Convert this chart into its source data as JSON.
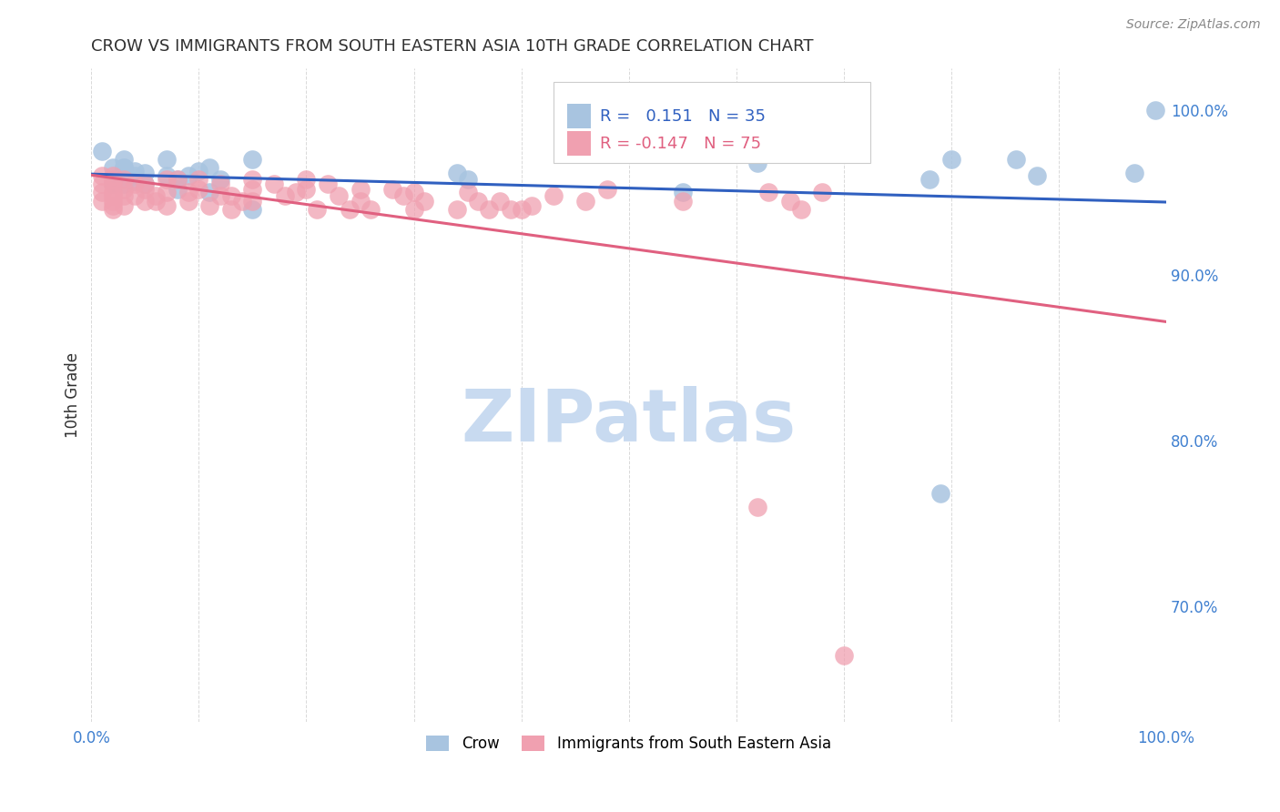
{
  "title": "CROW VS IMMIGRANTS FROM SOUTH EASTERN ASIA 10TH GRADE CORRELATION CHART",
  "source": "Source: ZipAtlas.com",
  "ylabel": "10th Grade",
  "legend_blue_label": "Crow",
  "legend_pink_label": "Immigrants from South Eastern Asia",
  "blue_R": 0.151,
  "blue_N": 35,
  "pink_R": -0.147,
  "pink_N": 75,
  "blue_color": "#a8c4e0",
  "pink_color": "#f0a0b0",
  "blue_line_color": "#3060c0",
  "pink_line_color": "#e06080",
  "background_color": "#ffffff",
  "grid_color": "#d0d0d0",
  "title_color": "#303030",
  "right_axis_color": "#4080d0",
  "xmin": 0.0,
  "xmax": 1.0,
  "ymin": 0.63,
  "ymax": 1.025,
  "blue_scatter_x": [
    0.01,
    0.02,
    0.02,
    0.03,
    0.03,
    0.03,
    0.03,
    0.03,
    0.04,
    0.04,
    0.04,
    0.05,
    0.05,
    0.07,
    0.07,
    0.08,
    0.08,
    0.09,
    0.1,
    0.11,
    0.11,
    0.12,
    0.15,
    0.15,
    0.34,
    0.35,
    0.55,
    0.62,
    0.78,
    0.79,
    0.8,
    0.86,
    0.88,
    0.97,
    0.99
  ],
  "blue_scatter_y": [
    0.975,
    0.965,
    0.955,
    0.955,
    0.965,
    0.96,
    0.97,
    0.965,
    0.957,
    0.96,
    0.963,
    0.955,
    0.962,
    0.97,
    0.96,
    0.952,
    0.958,
    0.96,
    0.963,
    0.95,
    0.965,
    0.958,
    0.94,
    0.97,
    0.962,
    0.958,
    0.95,
    0.968,
    0.958,
    0.768,
    0.97,
    0.97,
    0.96,
    0.962,
    1.0
  ],
  "pink_scatter_x": [
    0.01,
    0.01,
    0.01,
    0.01,
    0.02,
    0.02,
    0.02,
    0.02,
    0.02,
    0.02,
    0.02,
    0.02,
    0.03,
    0.03,
    0.03,
    0.03,
    0.04,
    0.04,
    0.05,
    0.05,
    0.05,
    0.06,
    0.06,
    0.07,
    0.07,
    0.07,
    0.08,
    0.09,
    0.09,
    0.1,
    0.1,
    0.11,
    0.12,
    0.12,
    0.13,
    0.13,
    0.14,
    0.15,
    0.15,
    0.15,
    0.17,
    0.18,
    0.19,
    0.2,
    0.2,
    0.21,
    0.22,
    0.23,
    0.24,
    0.25,
    0.25,
    0.26,
    0.28,
    0.29,
    0.3,
    0.3,
    0.31,
    0.34,
    0.35,
    0.36,
    0.37,
    0.38,
    0.39,
    0.4,
    0.41,
    0.43,
    0.46,
    0.48,
    0.55,
    0.62,
    0.63,
    0.65,
    0.66,
    0.68,
    0.7
  ],
  "pink_scatter_y": [
    0.96,
    0.955,
    0.95,
    0.945,
    0.96,
    0.958,
    0.95,
    0.948,
    0.945,
    0.942,
    0.94,
    0.955,
    0.958,
    0.952,
    0.948,
    0.942,
    0.955,
    0.948,
    0.955,
    0.952,
    0.945,
    0.945,
    0.948,
    0.958,
    0.95,
    0.942,
    0.958,
    0.95,
    0.945,
    0.958,
    0.952,
    0.942,
    0.955,
    0.948,
    0.948,
    0.94,
    0.945,
    0.958,
    0.952,
    0.945,
    0.955,
    0.948,
    0.95,
    0.958,
    0.952,
    0.94,
    0.955,
    0.948,
    0.94,
    0.952,
    0.945,
    0.94,
    0.952,
    0.948,
    0.94,
    0.95,
    0.945,
    0.94,
    0.95,
    0.945,
    0.94,
    0.945,
    0.94,
    0.94,
    0.942,
    0.948,
    0.945,
    0.952,
    0.945,
    0.76,
    0.95,
    0.945,
    0.94,
    0.95,
    0.67
  ],
  "watermark_zip": "ZIP",
  "watermark_atlas": "atlas",
  "watermark_color_zip": "#c8daf0",
  "watermark_color_atlas": "#a0c0e8",
  "watermark_fontsize": 58
}
